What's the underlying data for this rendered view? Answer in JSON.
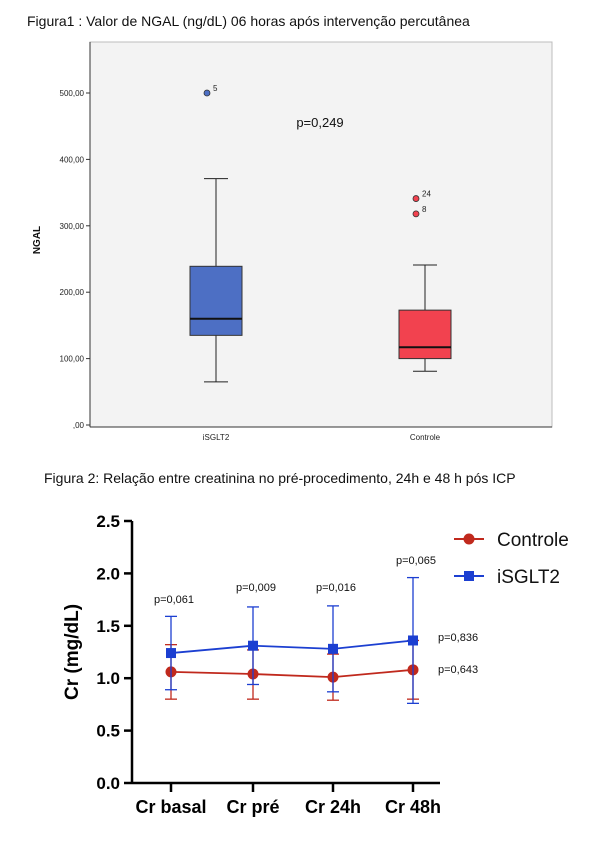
{
  "figure1": {
    "caption": "Figura1 : Valor de NGAL (ng/dL) 06 horas após intervenção percutânea"
  },
  "figure2": {
    "caption": "Figura 2: Relação entre creatinina no pré-procedimento, 24h e 48 h pós ICP"
  },
  "chart_data": [
    {
      "type": "box",
      "title": "",
      "ylabel": "NGAL",
      "xlabel": "",
      "ylim": [
        0,
        550
      ],
      "yticks": [
        0,
        100,
        200,
        300,
        400,
        500
      ],
      "ytick_labels": [
        ",00",
        "100,00",
        "200,00",
        "300,00",
        "400,00",
        "500,00"
      ],
      "grid": false,
      "annotation": "p=0,249",
      "categories": [
        "iSGLT2",
        "Controle"
      ],
      "colors": [
        "#4d6fc4",
        "#f2424f"
      ],
      "boxes": [
        {
          "name": "iSGLT2",
          "whisker_low": 65,
          "q1": 135,
          "median": 160,
          "q3": 239,
          "whisker_high": 371,
          "outliers": [
            {
              "label": "5",
              "value": 500
            }
          ]
        },
        {
          "name": "Controle",
          "whisker_low": 81,
          "q1": 100,
          "median": 117,
          "q3": 173,
          "whisker_high": 241,
          "outliers": [
            {
              "label": "24",
              "value": 341
            },
            {
              "label": "8",
              "value": 318
            }
          ]
        }
      ]
    },
    {
      "type": "line",
      "title": "",
      "ylabel": "Cr (mg/dL)",
      "xlabel": "",
      "ylim": [
        0,
        2.5
      ],
      "yticks": [
        "0.0",
        "0.5",
        "1.0",
        "1.5",
        "2.0",
        "2.5"
      ],
      "categories": [
        "Cr basal",
        "Cr pré",
        "Cr 24h",
        "Cr 48h"
      ],
      "legend_position": "top-right",
      "series": [
        {
          "name": "Controle",
          "color": "#c0291d",
          "marker": "circle",
          "values": [
            1.06,
            1.04,
            1.01,
            1.08
          ],
          "err_low": [
            0.8,
            0.8,
            0.79,
            0.8
          ],
          "err_high": [
            1.32,
            1.27,
            1.23,
            1.36
          ],
          "end_label": "p=0,643"
        },
        {
          "name": "iSGLT2",
          "color": "#1c3fd1",
          "marker": "square",
          "values": [
            1.24,
            1.31,
            1.28,
            1.36
          ],
          "err_low": [
            0.89,
            0.94,
            0.87,
            0.76
          ],
          "err_high": [
            1.59,
            1.68,
            1.69,
            1.96
          ],
          "end_label": "p=0,836"
        }
      ],
      "p_values": [
        "p=0,061",
        "p=0,009",
        "p=0,016",
        "p=0,065"
      ]
    }
  ]
}
